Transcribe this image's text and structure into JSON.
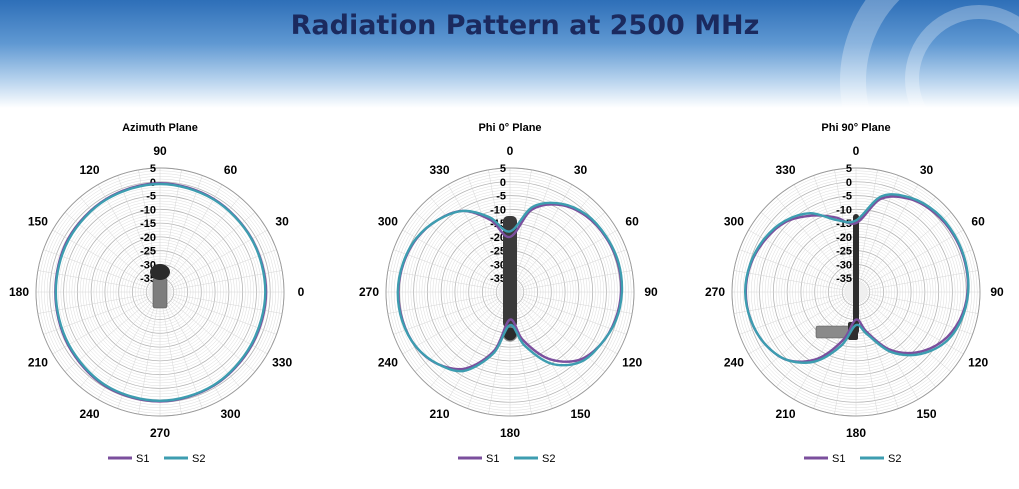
{
  "page": {
    "title": "Radiation Pattern at 2500 MHz"
  },
  "colors": {
    "S1": "#7b4f9d",
    "S2": "#3d9db0",
    "grid": "#bdbdbd",
    "title": "#1b2a5e"
  },
  "chart_data": [
    {
      "type": "polar-line",
      "title": "Azimuth Plane",
      "angle_labels": [
        "90",
        "60",
        "30",
        "0",
        "330",
        "300",
        "270",
        "240",
        "210",
        "180",
        "150",
        "120"
      ],
      "angle_orientation": "0 at right, counterclockwise",
      "radial_ticks": [
        "5",
        "0",
        "-5",
        "-10",
        "-15",
        "-20",
        "-25",
        "-30",
        "-35"
      ],
      "radial_range": [
        -40,
        5
      ],
      "legend": {
        "position": "bottom-center",
        "entries": [
          "S1",
          "S2"
        ]
      },
      "series": [
        {
          "name": "S1",
          "angle_deg": [
            0,
            30,
            60,
            90,
            120,
            150,
            180,
            210,
            240,
            270,
            300,
            330
          ],
          "gain_dBi": [
            -1.5,
            -1.5,
            -1,
            -0.5,
            -1,
            -1.5,
            -2,
            -1.5,
            -0.5,
            -0.3,
            -0.8,
            -1.5
          ]
        },
        {
          "name": "S2",
          "angle_deg": [
            0,
            30,
            60,
            90,
            120,
            150,
            180,
            210,
            240,
            270,
            300,
            330
          ],
          "gain_dBi": [
            -1.8,
            -1.6,
            -1.2,
            -0.8,
            -1.2,
            -1.8,
            -2.2,
            -1.8,
            -0.8,
            -0.5,
            -1,
            -1.8
          ]
        }
      ]
    },
    {
      "type": "polar-line",
      "title": "Phi 0° Plane",
      "angle_labels": [
        "0",
        "30",
        "60",
        "90",
        "120",
        "150",
        "180",
        "210",
        "240",
        "270",
        "300",
        "330"
      ],
      "angle_orientation": "0 at top, clockwise",
      "radial_ticks": [
        "5",
        "0",
        "-5",
        "-10",
        "-15",
        "-20",
        "-25",
        "-30",
        "-35"
      ],
      "radial_range": [
        -40,
        5
      ],
      "legend": {
        "position": "bottom-center",
        "entries": [
          "S1",
          "S2"
        ]
      },
      "series": [
        {
          "name": "S1",
          "angle_deg": [
            0,
            15,
            30,
            45,
            60,
            75,
            90,
            105,
            120,
            135,
            150,
            165,
            180,
            195,
            210,
            225,
            240,
            255,
            270,
            285,
            300,
            315,
            330,
            345
          ],
          "gain_dBi": [
            -20,
            -9,
            -3.5,
            -1,
            0,
            0.5,
            0.3,
            -0.5,
            -2,
            -5,
            -12,
            -22,
            -30,
            -18,
            -8,
            -3,
            -0.5,
            0.3,
            0.5,
            0,
            -1,
            -3,
            -6,
            -13
          ]
        },
        {
          "name": "S2",
          "angle_deg": [
            0,
            15,
            30,
            45,
            60,
            75,
            90,
            105,
            120,
            135,
            150,
            165,
            180,
            195,
            210,
            225,
            240,
            255,
            270,
            285,
            300,
            315,
            330,
            345
          ],
          "gain_dBi": [
            -18,
            -8,
            -3,
            -0.5,
            0.3,
            0.8,
            0.6,
            -0.2,
            -2,
            -4,
            -10,
            -20,
            -28,
            -17,
            -7,
            -3,
            -0.5,
            0.5,
            0.7,
            0.2,
            -0.8,
            -3,
            -6,
            -12
          ]
        }
      ]
    },
    {
      "type": "polar-line",
      "title": "Phi 90° Plane",
      "angle_labels": [
        "0",
        "30",
        "60",
        "90",
        "120",
        "150",
        "180",
        "210",
        "240",
        "270",
        "300",
        "330"
      ],
      "angle_orientation": "0 at top, clockwise",
      "radial_ticks": [
        "5",
        "0",
        "-5",
        "-10",
        "-15",
        "-20",
        "-25",
        "-30",
        "-35"
      ],
      "radial_range": [
        -40,
        5
      ],
      "legend": {
        "position": "bottom-center",
        "entries": [
          "S1",
          "S2"
        ]
      },
      "series": [
        {
          "name": "S1",
          "angle_deg": [
            0,
            15,
            30,
            45,
            60,
            75,
            90,
            105,
            120,
            135,
            150,
            165,
            180,
            195,
            210,
            225,
            240,
            255,
            270,
            285,
            300,
            315,
            330,
            345
          ],
          "gain_dBi": [
            -15,
            -5,
            -1,
            0.5,
            1,
            1,
            0.5,
            -1,
            -4,
            -9,
            -16,
            -25,
            -30,
            -22,
            -12,
            -5,
            -2,
            -0.5,
            0,
            -0.5,
            -2,
            -4,
            -8,
            -12
          ]
        },
        {
          "name": "S2",
          "angle_deg": [
            0,
            15,
            30,
            45,
            60,
            75,
            90,
            105,
            120,
            135,
            150,
            165,
            180,
            195,
            210,
            225,
            240,
            255,
            270,
            285,
            300,
            315,
            330,
            345
          ],
          "gain_dBi": [
            -14,
            -4,
            -0.5,
            1,
            1.3,
            1.2,
            0.7,
            -0.5,
            -3,
            -8,
            -15,
            -24,
            -28,
            -20,
            -11,
            -5,
            -2,
            -0.5,
            0.2,
            -0.3,
            -1.5,
            -3.5,
            -7,
            -13
          ]
        }
      ]
    }
  ]
}
